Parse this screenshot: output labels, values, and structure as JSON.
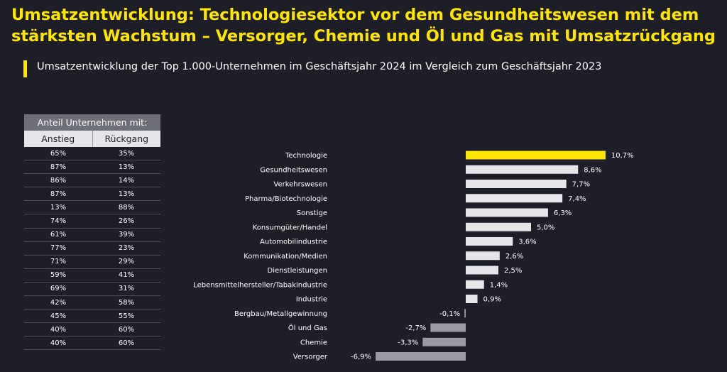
{
  "header": {
    "title": "Umsatzentwicklung: Technologiesektor vor dem Gesundheitswesen mit dem stärksten Wachstum – Versorger, Chemie und Öl und Gas mit Umsatzrückgang",
    "subtitle": "Umsatzentwicklung der Top 1.000-Unternehmen im Geschäftsjahr 2024 im Vergleich zum Geschäftsjahr 2023"
  },
  "share_table": {
    "header": "Anteil Unternehmen mit:",
    "col_increase": "Anstieg",
    "col_decrease": "Rückgang",
    "rows": [
      {
        "increase": "65%",
        "decrease": "35%"
      },
      {
        "increase": "87%",
        "decrease": "13%"
      },
      {
        "increase": "86%",
        "decrease": "14%"
      },
      {
        "increase": "87%",
        "decrease": "13%"
      },
      {
        "increase": "13%",
        "decrease": "88%"
      },
      {
        "increase": "74%",
        "decrease": "26%"
      },
      {
        "increase": "61%",
        "decrease": "39%"
      },
      {
        "increase": "77%",
        "decrease": "23%"
      },
      {
        "increase": "71%",
        "decrease": "29%"
      },
      {
        "increase": "59%",
        "decrease": "41%"
      },
      {
        "increase": "69%",
        "decrease": "31%"
      },
      {
        "increase": "42%",
        "decrease": "58%"
      },
      {
        "increase": "45%",
        "decrease": "55%"
      },
      {
        "increase": "40%",
        "decrease": "60%"
      },
      {
        "increase": "40%",
        "decrease": "60%"
      }
    ]
  },
  "colors": {
    "highlight": "#ffe600",
    "positive": "#e6e6ea",
    "negative": "#9a9aa2",
    "background": "#1e1e28"
  },
  "chart_data": {
    "type": "bar",
    "orientation": "horizontal",
    "categories": [
      "Technologie",
      "Gesundheitswesen",
      "Verkehrswesen",
      "Pharma/Biotechnologie",
      "Sonstige",
      "Konsumgüter/Handel",
      "Automobilindustrie",
      "Kommunikation/Medien",
      "Dienstleistungen",
      "Lebensmittelhersteller/Tabakindustrie",
      "Industrie",
      "Bergbau/Metallgewinnung",
      "Öl und Gas",
      "Chemie",
      "Versorger"
    ],
    "values": [
      10.7,
      8.6,
      7.7,
      7.4,
      6.3,
      5.0,
      3.6,
      2.6,
      2.5,
      1.4,
      0.9,
      -0.1,
      -2.7,
      -3.3,
      -6.9
    ],
    "labels": [
      "10,7%",
      "8,6%",
      "7,7%",
      "7,4%",
      "6,3%",
      "5,0%",
      "3,6%",
      "2,6%",
      "2,5%",
      "1,4%",
      "0,9%",
      "-0,1%",
      "-2,7%",
      "-3,3%",
      "-6,9%"
    ],
    "highlight_index": 0
  }
}
